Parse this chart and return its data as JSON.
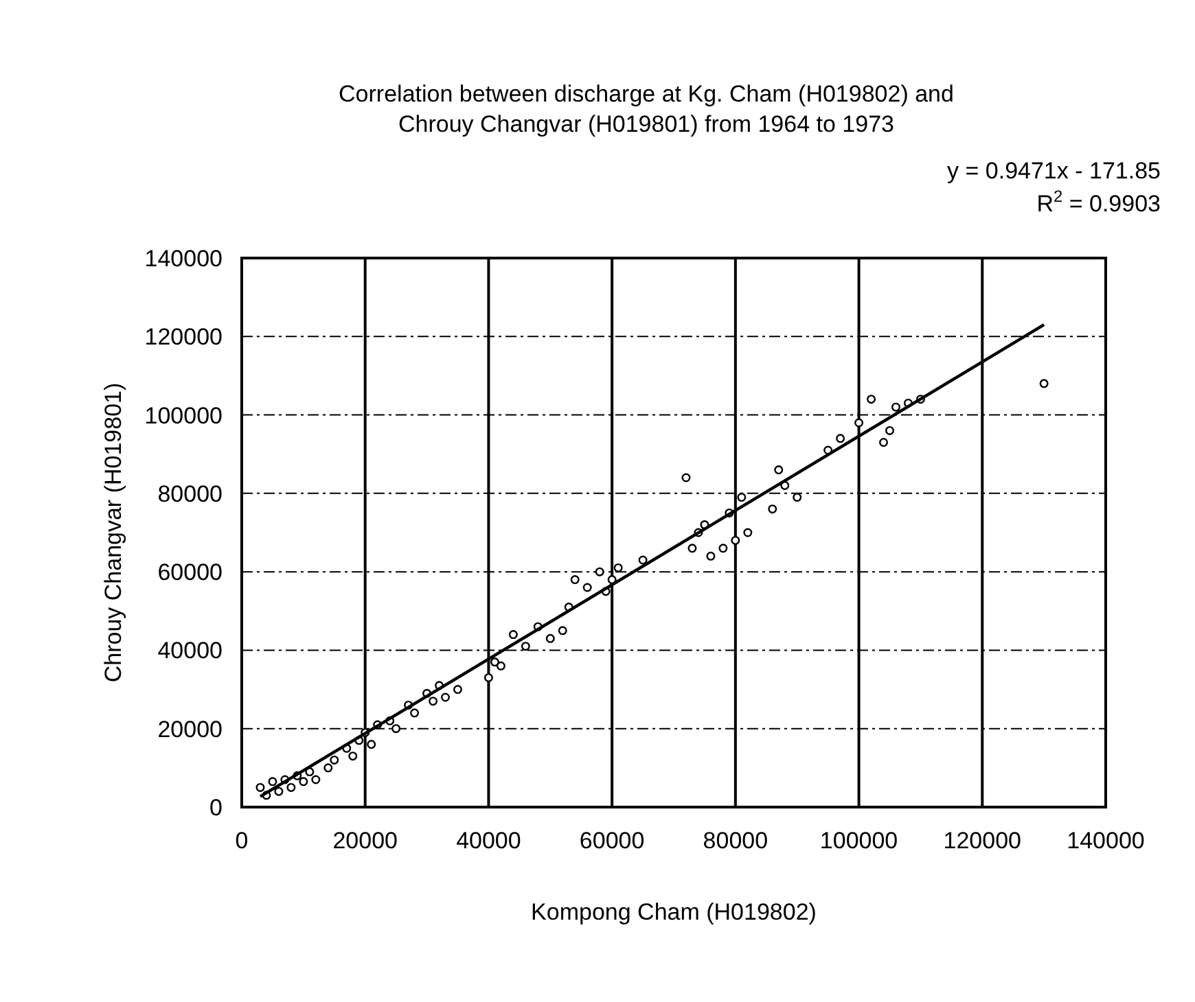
{
  "chart_data": {
    "type": "scatter",
    "title": "Correlation between discharge at Kg. Cham (H019802) and Chrouy Changvar (H019801) from 1964 to 1973",
    "xlabel": "Kompong Cham (H019802)",
    "ylabel": "Chrouy Changvar (H019801)",
    "annotations": [
      "y = 0.9471x - 171.85",
      "R$^{2}$ = 0.9903"
    ],
    "xlim": [
      0,
      140000
    ],
    "xticks": [
      0,
      20000,
      40000,
      60000,
      80000,
      100000,
      120000,
      140000
    ],
    "ylim": [
      0,
      140000
    ],
    "yticks": [
      0,
      20000,
      40000,
      60000,
      80000,
      100000,
      120000,
      140000
    ],
    "grid": true,
    "marker": "circle",
    "series": [
      {
        "color": "#000000",
        "x": [
          3000,
          4000,
          5000,
          6000,
          7000,
          8000,
          9000,
          10000,
          11000,
          12000,
          14000,
          15000,
          17000,
          18000,
          19000,
          20000,
          21000,
          22000,
          24000,
          25000,
          27000,
          28000,
          30000,
          31000,
          32000,
          33000,
          35000,
          40000,
          41000,
          42000,
          44000,
          46000,
          48000,
          50000,
          52000,
          53000,
          54000,
          56000,
          58000,
          59000,
          60000,
          61000,
          65000,
          72000,
          73000,
          74000,
          75000,
          76000,
          78000,
          79000,
          80000,
          81000,
          82000,
          86000,
          87000,
          88000,
          90000,
          95000,
          97000,
          100000,
          102000,
          104000,
          105000,
          106000,
          108000,
          110000,
          130000
        ],
        "values": [
          5000,
          3000,
          6500,
          4000,
          7000,
          5000,
          8000,
          6500,
          9000,
          7000,
          10000,
          12000,
          15000,
          13000,
          17000,
          19000,
          16000,
          21000,
          22000,
          20000,
          26000,
          24000,
          29000,
          27000,
          31000,
          28000,
          30000,
          33000,
          37000,
          36000,
          44000,
          41000,
          46000,
          43000,
          45000,
          51000,
          58000,
          56000,
          60000,
          55000,
          58000,
          61000,
          63000,
          84000,
          66000,
          70000,
          72000,
          64000,
          66000,
          75000,
          68000,
          79000,
          70000,
          76000,
          86000,
          82000,
          79000,
          91000,
          94000,
          98000,
          104000,
          93000,
          96000,
          102000,
          103000,
          104000,
          108000
        ]
      },
      {
        "type": "line",
        "color": "#000000",
        "marker": "none",
        "x": [
          3000,
          130000
        ],
        "values": [
          2700,
          123000
        ]
      }
    ]
  }
}
